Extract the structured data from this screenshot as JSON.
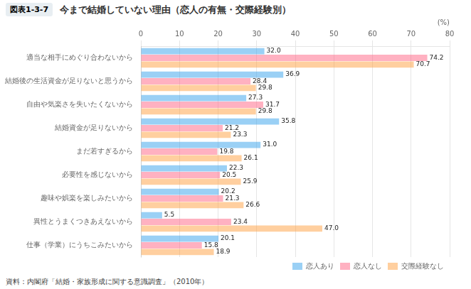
{
  "chart_data": {
    "type": "bar",
    "orientation": "horizontal",
    "title": "今まで結婚していない理由（恋人の有無・交際経験別）",
    "header_label": "図表1-3-7",
    "source": "資料：内閣府「結婚・家族形成に関する意識調査」（2010年）",
    "xlabel": "(%)",
    "categories": [
      "適当な相手にめぐり合わないから",
      "結婚後の生活資金が足りないと思うから",
      "自由や気楽さを失いたくないから",
      "結婚資金が足りないから",
      "まだ若すぎるから",
      "必要性を感じないから",
      "趣味や娯楽を楽しみたいから",
      "異性とうまくつきあえないから",
      "仕事（学業）にうちこみたいから"
    ],
    "series": [
      {
        "name": "恋人あり",
        "values": [
          32.0,
          36.9,
          27.3,
          35.8,
          31.0,
          22.3,
          20.2,
          5.5,
          20.1
        ],
        "value_labels": [
          "32.0",
          "36.9",
          "27.3",
          "35.8",
          "31.0",
          "22.3",
          "20.2",
          "5.5",
          "20.1"
        ]
      },
      {
        "name": "恋人なし",
        "values": [
          74.2,
          28.4,
          31.7,
          21.2,
          19.8,
          20.5,
          21.3,
          23.4,
          15.8
        ],
        "value_labels": [
          "74.2",
          "28.4",
          "31.7",
          "21.2",
          "19.8",
          "20.5",
          "21.3",
          "23.4",
          "15.8"
        ]
      },
      {
        "name": "交際経験なし",
        "values": [
          70.7,
          29.8,
          29.8,
          23.3,
          26.1,
          25.9,
          26.6,
          47.0,
          18.9
        ],
        "value_labels": [
          "70.7",
          "29.8",
          "29.8",
          "23.3",
          "26.1",
          "25.9",
          "26.6",
          "47.0",
          "18.9"
        ]
      }
    ],
    "xlim": [
      0,
      80
    ],
    "xticks": [
      0,
      10,
      20,
      30,
      40,
      50,
      60,
      70,
      80
    ],
    "grid": true,
    "legend": "lower right",
    "data_labels": true
  }
}
